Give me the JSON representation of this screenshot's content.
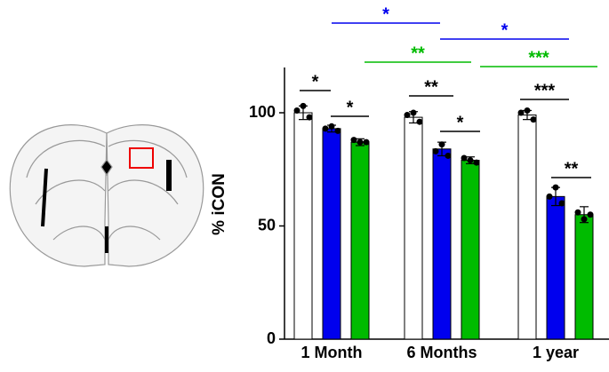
{
  "chart_data": {
    "type": "bar",
    "ylabel": "% iCON",
    "categories": [
      "1 Month",
      "6 Months",
      "1 year"
    ],
    "series": [
      {
        "color": "#ffffff",
        "values": [
          100,
          98,
          99
        ],
        "errors": [
          3,
          2.5,
          2
        ],
        "points": [
          [
            101,
            103,
            98
          ],
          [
            99,
            100,
            96
          ],
          [
            100,
            101,
            97
          ]
        ]
      },
      {
        "color": "#0000ee",
        "values": [
          93,
          84,
          63
        ],
        "errors": [
          1.5,
          3,
          4
        ],
        "points": [
          [
            93,
            94,
            92
          ],
          [
            83,
            86,
            81
          ],
          [
            63,
            67,
            60
          ]
        ]
      },
      {
        "color": "#00bb00",
        "values": [
          87,
          79,
          55
        ],
        "errors": [
          1.5,
          1.5,
          3.5
        ],
        "points": [
          [
            88,
            87,
            87
          ],
          [
            80,
            79,
            78
          ],
          [
            56,
            53,
            55
          ]
        ]
      }
    ],
    "ylim": [
      0,
      120
    ],
    "yticks": [
      0,
      50,
      100
    ],
    "annotations": [
      {
        "text": "*",
        "color": "#000000"
      },
      {
        "text": "*",
        "color": "#000000"
      },
      {
        "text": "**",
        "color": "#000000"
      },
      {
        "text": "*",
        "color": "#000000"
      },
      {
        "text": "***",
        "color": "#000000"
      },
      {
        "text": "**",
        "color": "#000000"
      },
      {
        "text": "*",
        "color": "#0000ee"
      },
      {
        "text": "*",
        "color": "#0000ee"
      },
      {
        "text": "**",
        "color": "#00bb00"
      },
      {
        "text": "***",
        "color": "#00bb00"
      }
    ]
  }
}
